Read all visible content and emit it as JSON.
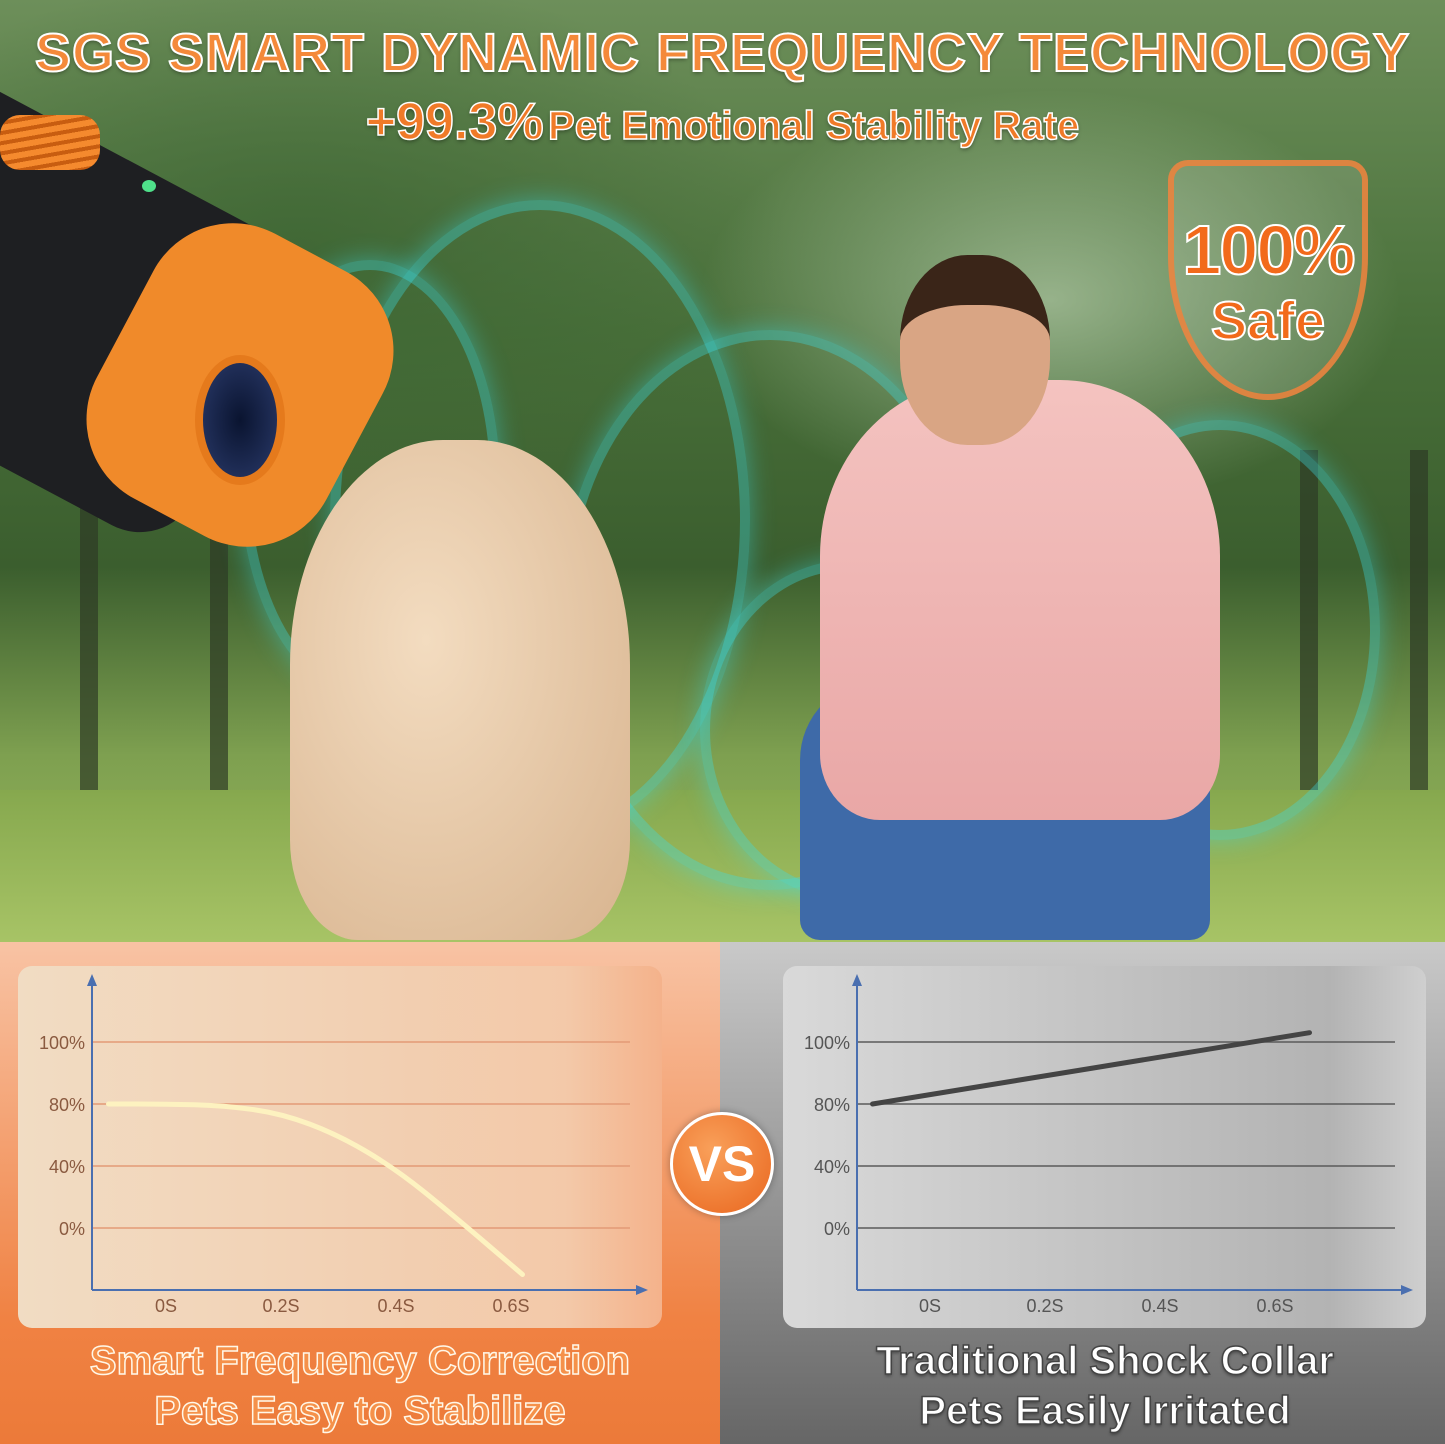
{
  "header": {
    "title": "SGS SMART DYNAMIC FREQUENCY TECHNOLOGY",
    "stat_value": "+99.3%",
    "stat_label": "Pet Emotional Stability Rate"
  },
  "badge": {
    "percent": "100%",
    "label": "Safe"
  },
  "vs_label": "VS",
  "colors": {
    "accent": "#f07a28",
    "left_panel": "#f08243",
    "right_panel": "#8c8c8c",
    "left_line": "#fdf2c0",
    "right_line": "#444444",
    "axis": "#4a6fb0"
  },
  "left": {
    "caption_line1": "Smart Frequency Correction",
    "caption_line2": "Pets Easy to Stabilize"
  },
  "right": {
    "caption_line1": "Traditional Shock Collar",
    "caption_line2": "Pets Easily Irritated"
  },
  "chart_data": [
    {
      "type": "line",
      "y_tick_labels": [
        "100%",
        "80%",
        "40%",
        "0%"
      ],
      "x_tick_labels": [
        "0S",
        "0.2S",
        "0.4S",
        "0.6S"
      ],
      "grid": true,
      "series": [
        {
          "x": [
            -0.1,
            0,
            0.1,
            0.2,
            0.3,
            0.4,
            0.5,
            0.62
          ],
          "y": [
            80,
            80,
            79,
            74,
            60,
            38,
            8,
            -30
          ]
        }
      ]
    },
    {
      "type": "line",
      "y_tick_labels": [
        "100%",
        "80%",
        "40%",
        "0%"
      ],
      "x_tick_labels": [
        "0S",
        "0.2S",
        "0.4S",
        "0.6S"
      ],
      "grid": true,
      "series": [
        {
          "x": [
            -0.1,
            0.66
          ],
          "y": [
            80,
            103
          ]
        }
      ]
    }
  ]
}
